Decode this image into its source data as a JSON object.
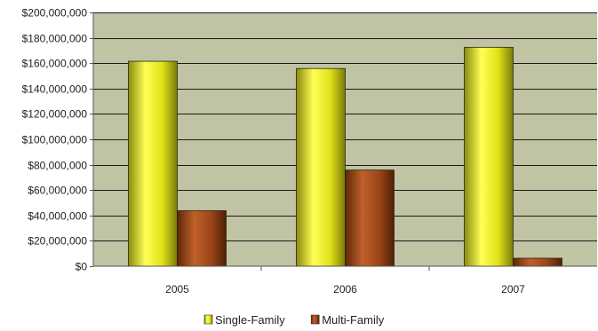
{
  "chart_data": {
    "type": "bar",
    "categories": [
      "2005",
      "2006",
      "2007"
    ],
    "series": [
      {
        "name": "Single-Family",
        "values": [
          161500000,
          155800000,
          172500000
        ],
        "color": "#e6e61a"
      },
      {
        "name": "Multi-Family",
        "values": [
          43800000,
          75800000,
          6300000
        ],
        "color": "#a04a1c"
      }
    ],
    "ylim": [
      0,
      200000000
    ],
    "yticks": [
      0,
      20000000,
      40000000,
      60000000,
      80000000,
      100000000,
      120000000,
      140000000,
      160000000,
      180000000,
      200000000
    ],
    "ytick_labels": [
      "$0",
      "$20,000,000",
      "$40,000,000",
      "$60,000,000",
      "$80,000,000",
      "$100,000,000",
      "$120,000,000",
      "$140,000,000",
      "$160,000,000",
      "$180,000,000",
      "$200,000,000"
    ],
    "grid": true,
    "legend": "bottom",
    "plot_background": "#c0c3a4",
    "gridline_color": "#1a1a1a"
  }
}
